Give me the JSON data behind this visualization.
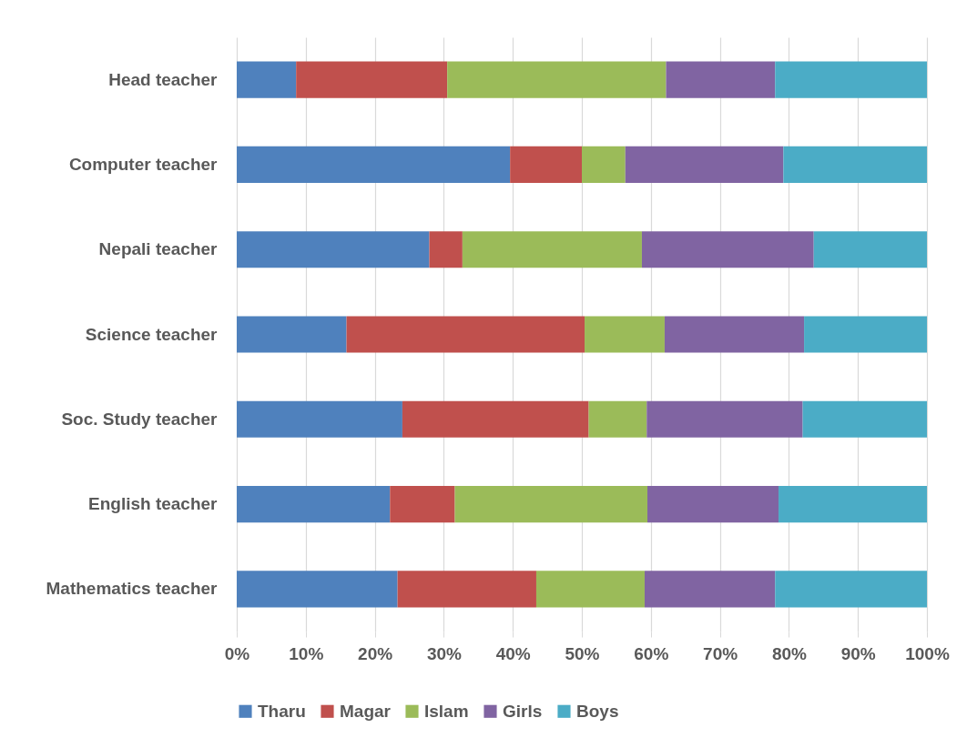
{
  "chart_data": {
    "type": "bar",
    "orientation": "horizontal",
    "stacked": true,
    "categories": [
      "Head teacher",
      "Computer teacher",
      "Nepali teacher",
      "Science teacher",
      "Soc. Study teacher",
      "English teacher",
      "Mathematics teacher"
    ],
    "series": [
      {
        "name": "Tharu",
        "color": "#4f81bd",
        "values": [
          8.6,
          39.6,
          27.9,
          15.9,
          24.0,
          22.2,
          23.3
        ]
      },
      {
        "name": "Magar",
        "color": "#c0504d",
        "values": [
          21.9,
          10.4,
          4.8,
          34.5,
          27.0,
          9.4,
          20.1
        ]
      },
      {
        "name": "Islam",
        "color": "#9bbb59",
        "values": [
          31.7,
          6.3,
          26.0,
          11.6,
          8.4,
          27.9,
          15.7
        ]
      },
      {
        "name": "Girls",
        "color": "#8064a2",
        "values": [
          15.8,
          22.9,
          24.9,
          20.2,
          22.6,
          19.0,
          18.9
        ]
      },
      {
        "name": "Boys",
        "color": "#4bacc6",
        "values": [
          22.0,
          20.8,
          16.4,
          17.8,
          18.0,
          21.5,
          22.0
        ]
      }
    ],
    "xlim": [
      0,
      100
    ],
    "xticks": [
      {
        "value": 0,
        "label": "0%"
      },
      {
        "value": 10,
        "label": "10%"
      },
      {
        "value": 20,
        "label": "20%"
      },
      {
        "value": 30,
        "label": "30%"
      },
      {
        "value": 40,
        "label": "40%"
      },
      {
        "value": 50,
        "label": "50%"
      },
      {
        "value": 60,
        "label": "60%"
      },
      {
        "value": 70,
        "label": "70%"
      },
      {
        "value": 80,
        "label": "80%"
      },
      {
        "value": 90,
        "label": "90%"
      },
      {
        "value": 100,
        "label": "100%"
      }
    ],
    "grid": "x",
    "legend": "bottom"
  }
}
